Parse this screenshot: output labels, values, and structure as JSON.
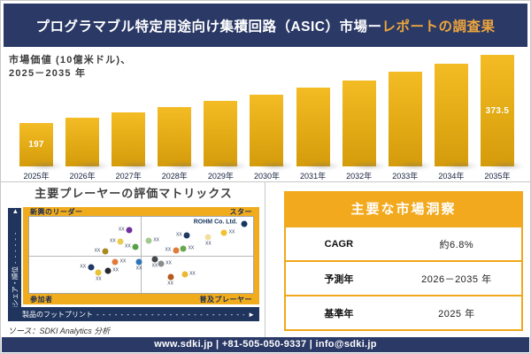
{
  "header": {
    "title_main": "プログラマブル特定用途向け集積回路（ASIC）市場ー",
    "title_accent": "レポートの調査果"
  },
  "chart": {
    "subtitle_line1": "市場価値 (10億米ドル)、",
    "subtitle_line2": "2025－2035 年"
  },
  "chart_data": [
    {
      "type": "bar",
      "title": "市場価値 (10億米ドル)、2025－2035 年",
      "ylabel": "10億米ドル",
      "categories": [
        "2025年",
        "2026年",
        "2027年",
        "2028年",
        "2029年",
        "2030年",
        "2031年",
        "2032年",
        "2033年",
        "2034年",
        "2035年"
      ],
      "values": [
        197,
        210,
        224,
        239,
        254,
        271,
        289,
        308,
        329,
        350,
        373.5
      ],
      "data_labels": {
        "first": "197",
        "last": "373.5"
      },
      "bar_color": "#E2AA14",
      "ylim": [
        0,
        400
      ],
      "grid": false,
      "legend": false
    },
    {
      "type": "scatter",
      "title": "主要プレーヤーの評価マトリックス",
      "xlabel": "製品のフットプリント",
      "ylabel": "市場シェア・順位",
      "xlim": [
        0,
        100
      ],
      "ylim": [
        0,
        100
      ],
      "points": [
        {
          "x": 44.7,
          "y": 82.0,
          "color": "#7030A0",
          "label": "XX",
          "label_pos": "left"
        },
        {
          "x": 40.8,
          "y": 67.0,
          "color": "#E9CC4F",
          "label": "XX",
          "label_pos": "left"
        },
        {
          "x": 47.5,
          "y": 60.0,
          "color": "#55A246",
          "label": "XX",
          "label_pos": "left"
        },
        {
          "x": 33.9,
          "y": 54.5,
          "color": "#A78B1E",
          "label": "XX",
          "label_pos": "left"
        },
        {
          "x": 53.3,
          "y": 68.2,
          "color": "#A4C98E",
          "label": "XX",
          "label_pos": "right"
        },
        {
          "x": 70.4,
          "y": 75.6,
          "color": "#1F3864",
          "label": "XX",
          "label_pos": "left"
        },
        {
          "x": 80.0,
          "y": 73.3,
          "color": "#F0E0A0",
          "label": "XX",
          "label_pos": "below"
        },
        {
          "x": 87.0,
          "y": 79.5,
          "color": "#F2C12E",
          "label": "XX",
          "label_pos": "right"
        },
        {
          "x": 65.5,
          "y": 56.2,
          "color": "#E07B39",
          "label": "XX",
          "label_pos": "left"
        },
        {
          "x": 68.8,
          "y": 58.0,
          "color": "#6AA84F",
          "label": "XX",
          "label_pos": "right"
        },
        {
          "x": 95.9,
          "y": 90.3,
          "color": "#17375E",
          "label": "ROHM Co. Ltd.",
          "label_pos": "far-left",
          "emphasis": true
        },
        {
          "x": 27.5,
          "y": 33.5,
          "color": "#1F3864",
          "label": "XX",
          "label_pos": "left"
        },
        {
          "x": 38.4,
          "y": 40.3,
          "color": "#E07B39",
          "label": "XX",
          "label_pos": "right"
        },
        {
          "x": 35.1,
          "y": 29.0,
          "color": "#26282B",
          "label": "XX",
          "label_pos": "right"
        },
        {
          "x": 31.0,
          "y": 26.7,
          "color": "#E8C235",
          "label": "XX",
          "label_pos": "below"
        },
        {
          "x": 49.0,
          "y": 40.3,
          "color": "#2E75B6",
          "label": "XX",
          "label_pos": "below"
        },
        {
          "x": 56.1,
          "y": 43.7,
          "color": "#44474E",
          "label": "XX",
          "label_pos": "below"
        },
        {
          "x": 58.8,
          "y": 38.6,
          "color": "#8C8C8C",
          "label": "XX",
          "label_pos": "right"
        },
        {
          "x": 63.1,
          "y": 21.0,
          "color": "#B45A1B",
          "label": "XX",
          "label_pos": "below"
        },
        {
          "x": 69.4,
          "y": 23.9,
          "color": "#E8B931",
          "label": "XX",
          "label_pos": "right"
        }
      ]
    }
  ],
  "matrix": {
    "title": "主要プレーヤーの評価マトリックス",
    "quadrants": {
      "top_left": "新興のリーダー",
      "top_right": "スター",
      "bottom_left": "参加者",
      "bottom_right": "普及プレーヤー"
    },
    "y_axis_label": "市場シェア・順位",
    "y_axis_dashes": "- - - - - -",
    "x_axis_label": "製品のフットプリント",
    "x_axis_dashes": "- - - - - - - - - - - - - - - - - - - - - - - - - - -",
    "axis_arrow": "►"
  },
  "insights": {
    "title": "主要な市場洞察",
    "rows": [
      {
        "label": "CAGR",
        "value": "約6.8%"
      },
      {
        "label": "予測年",
        "value": "2026－2035 年"
      },
      {
        "label": "基準年",
        "value": "2025 年"
      }
    ]
  },
  "source": "ソース：SDKI Analytics 分析",
  "footer": {
    "text": "www.sdki.jp | +81-505-050-9337 | info@sdki.jp"
  },
  "colors": {
    "navy": "#2A3966",
    "axis_navy": "#20355E",
    "gold": "#F0AC1C",
    "accent_text": "#EDA53C",
    "bar_gradient_top": "#F3BB24",
    "bar_gradient_bottom": "#D49C0C"
  }
}
